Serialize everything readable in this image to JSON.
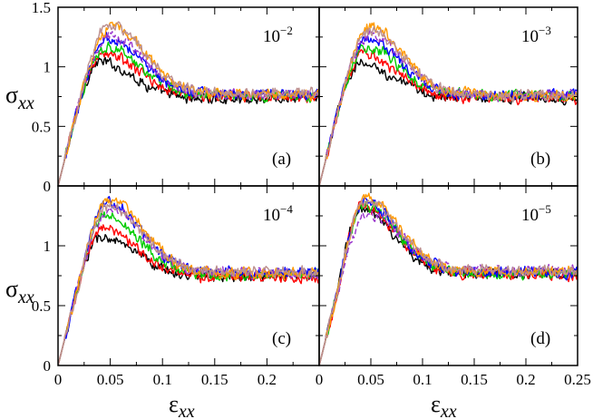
{
  "chart_data": {
    "type": "line",
    "title": "",
    "xlabel": "εxx",
    "ylabel": "σxx",
    "x_label": {
      "symbol": "ε",
      "subscript": "xx"
    },
    "y_label": {
      "symbol": "σ",
      "subscript": "xx"
    },
    "xlim": [
      0,
      0.25
    ],
    "ylim": [
      0,
      1.5
    ],
    "x_ticks": [
      "0",
      "0.05",
      "0.1",
      "0.15",
      "0.2",
      "0.25"
    ],
    "y_ticks": [
      "0",
      "0.5",
      "1",
      "1.5"
    ],
    "grid": false,
    "legend": "none",
    "series_colors": [
      "#000000",
      "#ff0000",
      "#00cc00",
      "#0000ff",
      "#9933cc",
      "#ff9900",
      "#bc8f8f"
    ],
    "panels": [
      {
        "label": "(a)",
        "rate": {
          "base": "10",
          "exponent": "−2"
        },
        "series": [
          {
            "name": "s1",
            "color": "#000000",
            "peak": 1.04,
            "plateau": 0.73,
            "x_peak": 0.04,
            "style": "solid"
          },
          {
            "name": "s2",
            "color": "#ff0000",
            "peak": 1.11,
            "plateau": 0.75,
            "x_peak": 0.044,
            "style": "solid"
          },
          {
            "name": "s3",
            "color": "#00cc00",
            "peak": 1.17,
            "plateau": 0.76,
            "x_peak": 0.046,
            "style": "solid"
          },
          {
            "name": "s4",
            "color": "#0000ff",
            "peak": 1.24,
            "plateau": 0.77,
            "x_peak": 0.048,
            "style": "solid"
          },
          {
            "name": "s5",
            "color": "#9933cc",
            "peak": 1.26,
            "plateau": 0.77,
            "x_peak": 0.05,
            "style": "dashed"
          },
          {
            "name": "s6",
            "color": "#ff9900",
            "peak": 1.34,
            "plateau": 0.77,
            "x_peak": 0.052,
            "style": "solid"
          },
          {
            "name": "s7",
            "color": "#bc8f8f",
            "peak": 1.36,
            "plateau": 0.78,
            "x_peak": 0.05,
            "style": "solid"
          }
        ]
      },
      {
        "label": "(b)",
        "rate": {
          "base": "10",
          "exponent": "−3"
        },
        "series": [
          {
            "name": "s1",
            "color": "#000000",
            "peak": 1.02,
            "plateau": 0.74,
            "x_peak": 0.04,
            "style": "solid"
          },
          {
            "name": "s2",
            "color": "#ff0000",
            "peak": 1.1,
            "plateau": 0.74,
            "x_peak": 0.043,
            "style": "solid"
          },
          {
            "name": "s3",
            "color": "#00cc00",
            "peak": 1.17,
            "plateau": 0.76,
            "x_peak": 0.045,
            "style": "solid"
          },
          {
            "name": "s4",
            "color": "#0000ff",
            "peak": 1.23,
            "plateau": 0.76,
            "x_peak": 0.047,
            "style": "solid"
          },
          {
            "name": "s5",
            "color": "#9933cc",
            "peak": 1.26,
            "plateau": 0.76,
            "x_peak": 0.049,
            "style": "dashed"
          },
          {
            "name": "s6",
            "color": "#ff9900",
            "peak": 1.34,
            "plateau": 0.76,
            "x_peak": 0.05,
            "style": "solid"
          },
          {
            "name": "s7",
            "color": "#bc8f8f",
            "peak": 1.3,
            "plateau": 0.76,
            "x_peak": 0.049,
            "style": "solid"
          }
        ]
      },
      {
        "label": "(c)",
        "rate": {
          "base": "10",
          "exponent": "−4"
        },
        "series": [
          {
            "name": "s1",
            "color": "#000000",
            "peak": 1.07,
            "plateau": 0.75,
            "x_peak": 0.041,
            "style": "solid"
          },
          {
            "name": "s2",
            "color": "#ff0000",
            "peak": 1.14,
            "plateau": 0.74,
            "x_peak": 0.043,
            "style": "solid"
          },
          {
            "name": "s3",
            "color": "#00cc00",
            "peak": 1.25,
            "plateau": 0.76,
            "x_peak": 0.045,
            "style": "solid"
          },
          {
            "name": "s4",
            "color": "#0000ff",
            "peak": 1.36,
            "plateau": 0.78,
            "x_peak": 0.048,
            "style": "solid"
          },
          {
            "name": "s5",
            "color": "#9933cc",
            "peak": 1.3,
            "plateau": 0.77,
            "x_peak": 0.05,
            "style": "dashed"
          },
          {
            "name": "s6",
            "color": "#ff9900",
            "peak": 1.39,
            "plateau": 0.77,
            "x_peak": 0.05,
            "style": "solid"
          },
          {
            "name": "s7",
            "color": "#bc8f8f",
            "peak": 1.33,
            "plateau": 0.78,
            "x_peak": 0.049,
            "style": "solid"
          }
        ]
      },
      {
        "label": "(d)",
        "rate": {
          "base": "10",
          "exponent": "−5"
        },
        "series": [
          {
            "name": "s1",
            "color": "#000000",
            "peak": 1.3,
            "plateau": 0.77,
            "x_peak": 0.04,
            "style": "solid"
          },
          {
            "name": "s2",
            "color": "#ff0000",
            "peak": 1.33,
            "plateau": 0.76,
            "x_peak": 0.042,
            "style": "solid"
          },
          {
            "name": "s3",
            "color": "#00cc00",
            "peak": 1.34,
            "plateau": 0.77,
            "x_peak": 0.044,
            "style": "solid"
          },
          {
            "name": "s4",
            "color": "#0000ff",
            "peak": 1.36,
            "plateau": 0.78,
            "x_peak": 0.044,
            "style": "solid"
          },
          {
            "name": "s5",
            "color": "#9933cc",
            "peak": 1.27,
            "plateau": 0.79,
            "x_peak": 0.048,
            "style": "dashed"
          },
          {
            "name": "s6",
            "color": "#ff9900",
            "peak": 1.4,
            "plateau": 0.78,
            "x_peak": 0.046,
            "style": "solid"
          },
          {
            "name": "s7",
            "color": "#bc8f8f",
            "peak": 1.37,
            "plateau": 0.79,
            "x_peak": 0.045,
            "style": "solid"
          }
        ]
      }
    ]
  }
}
